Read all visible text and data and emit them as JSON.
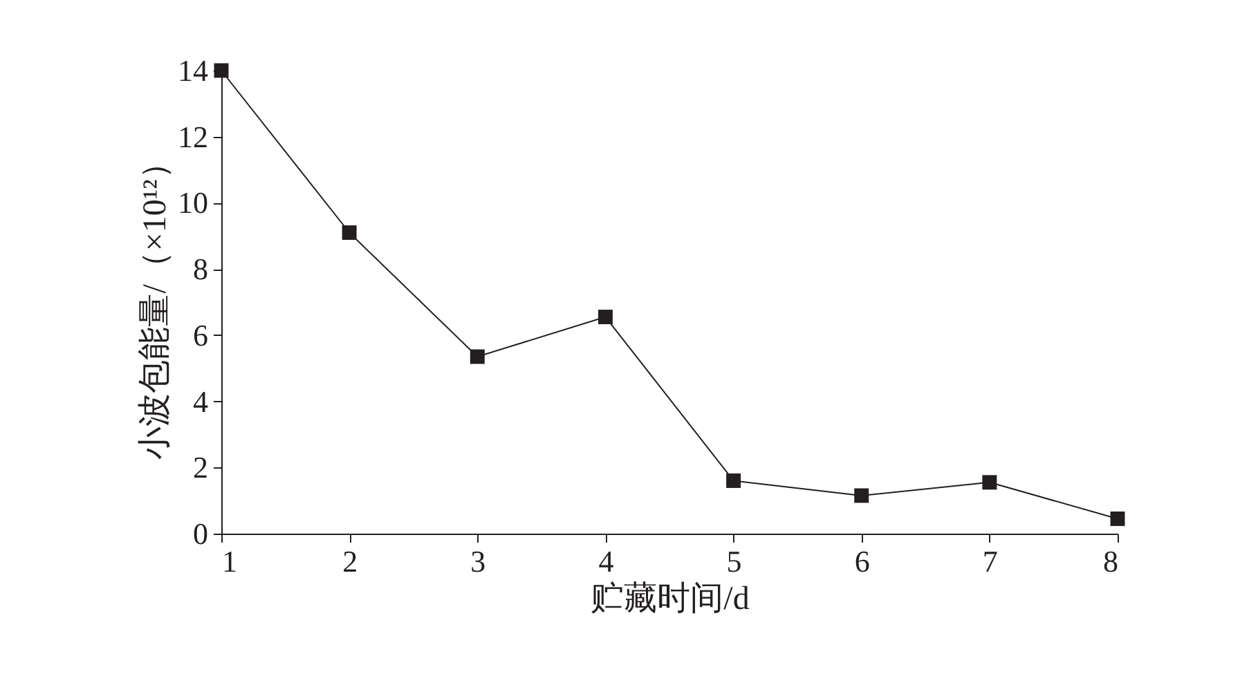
{
  "chart_data": {
    "type": "line",
    "xlabel": "贮藏时间/d",
    "ylabel": "小波包能量/（×10¹²）",
    "x": [
      1,
      2,
      3,
      4,
      5,
      6,
      7,
      8
    ],
    "series": [
      {
        "color": "#231f20",
        "values": [
          14.0,
          9.1,
          5.35,
          6.55,
          1.6,
          1.15,
          1.55,
          0.45
        ]
      }
    ],
    "xlim": [
      1,
      8
    ],
    "xticks": [
      1,
      2,
      3,
      4,
      5,
      6,
      7,
      8
    ],
    "ylim": [
      0,
      14
    ],
    "yticks": [
      0,
      2,
      4,
      6,
      8,
      10,
      12,
      14
    ],
    "grid": false,
    "marker": "square",
    "line_style": "solid"
  }
}
